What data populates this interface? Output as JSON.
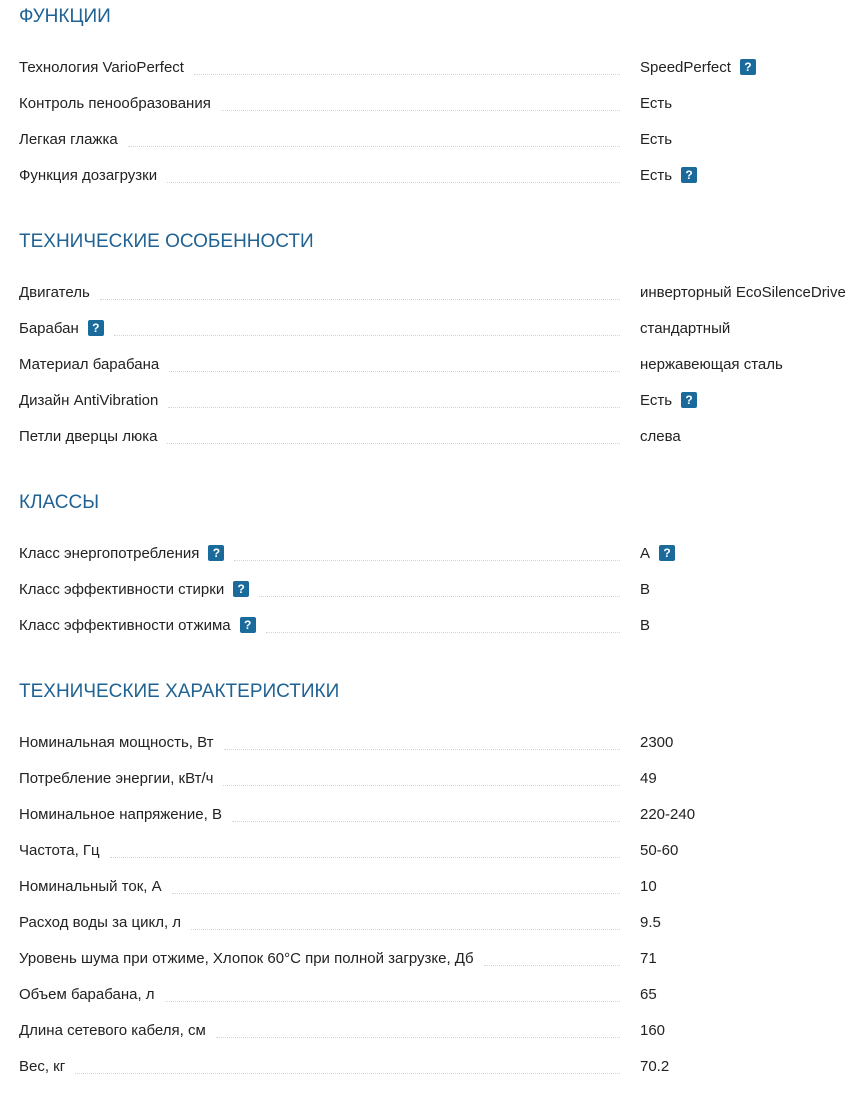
{
  "accent_color": "#1f6293",
  "help_icon_color": "#1b6a9c",
  "help_icon_glyph": "?",
  "sections": [
    {
      "title": "Функции",
      "rows": [
        {
          "label": "Технология VarioPerfect",
          "label_help": false,
          "value": "SpeedPerfect",
          "value_help": true
        },
        {
          "label": "Контроль пенообразования",
          "label_help": false,
          "value": "Есть",
          "value_help": false
        },
        {
          "label": "Легкая глажка",
          "label_help": false,
          "value": "Есть",
          "value_help": false
        },
        {
          "label": "Функция дозагрузки",
          "label_help": false,
          "value": "Есть",
          "value_help": true
        }
      ]
    },
    {
      "title": "Технические особенности",
      "rows": [
        {
          "label": "Двигатель",
          "label_help": false,
          "value": "инверторный EcoSilenceDrive",
          "value_help": false
        },
        {
          "label": "Барабан",
          "label_help": true,
          "value": "стандартный",
          "value_help": false
        },
        {
          "label": "Материал барабана",
          "label_help": false,
          "value": "нержавеющая сталь",
          "value_help": false
        },
        {
          "label": "Дизайн AntiVibration",
          "label_help": false,
          "value": "Есть",
          "value_help": true
        },
        {
          "label": "Петли дверцы люка",
          "label_help": false,
          "value": "слева",
          "value_help": false
        }
      ]
    },
    {
      "title": "Классы",
      "rows": [
        {
          "label": "Класс энергопотребления",
          "label_help": true,
          "value": "A",
          "value_help": true
        },
        {
          "label": "Класс эффективности стирки",
          "label_help": true,
          "value": "B",
          "value_help": false
        },
        {
          "label": "Класс эффективности отжима",
          "label_help": true,
          "value": "B",
          "value_help": false
        }
      ]
    },
    {
      "title": "Технические характеристики",
      "rows": [
        {
          "label": "Номинальная мощность, Вт",
          "label_help": false,
          "value": "2300",
          "value_help": false
        },
        {
          "label": "Потребление энергии, кВт/ч",
          "label_help": false,
          "value": "49",
          "value_help": false
        },
        {
          "label": "Номинальное напряжение, В",
          "label_help": false,
          "value": "220-240",
          "value_help": false
        },
        {
          "label": "Частота, Гц",
          "label_help": false,
          "value": "50-60",
          "value_help": false
        },
        {
          "label": "Номинальный ток, А",
          "label_help": false,
          "value": "10",
          "value_help": false
        },
        {
          "label": "Расход воды за цикл, л",
          "label_help": false,
          "value": "9.5",
          "value_help": false
        },
        {
          "label": "Уровень шума при отжиме, Хлопок 60°C при полной загрузке, Дб",
          "label_help": false,
          "value": "71",
          "value_help": false
        },
        {
          "label": "Объем барабана, л",
          "label_help": false,
          "value": "65",
          "value_help": false
        },
        {
          "label": "Длина сетевого кабеля, см",
          "label_help": false,
          "value": "160",
          "value_help": false
        },
        {
          "label": "Вес, кг",
          "label_help": false,
          "value": "70.2",
          "value_help": false
        }
      ]
    }
  ]
}
